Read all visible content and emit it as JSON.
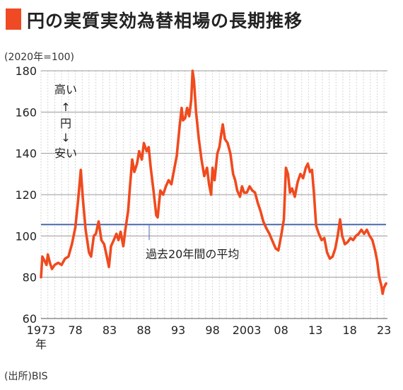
{
  "title": "円の実質実効為替相場の長期推移",
  "unit_label": "(2020年=100)",
  "source_label": "(出所)BIS",
  "colors": {
    "line": "#f04a1e",
    "avg": "#4a6aa8",
    "accent": "#ef4a23",
    "grid": "#c8c8c8"
  },
  "chart_data": {
    "type": "line",
    "title": "円の実質実効為替相場の長期推移",
    "ylim": [
      60,
      180
    ],
    "yticks": [
      60,
      80,
      100,
      120,
      140,
      160,
      180
    ],
    "xlim": [
      1973.0,
      2023.5
    ],
    "xticks": [
      {
        "x": 1973,
        "label": "1973"
      },
      {
        "x": 1978,
        "label": "78"
      },
      {
        "x": 1983,
        "label": "83"
      },
      {
        "x": 1988,
        "label": "88"
      },
      {
        "x": 1993,
        "label": "93"
      },
      {
        "x": 1998,
        "label": "98"
      },
      {
        "x": 2003,
        "label": "2003"
      },
      {
        "x": 2008,
        "label": "08"
      },
      {
        "x": 2013,
        "label": "13"
      },
      {
        "x": 2018,
        "label": "18"
      },
      {
        "x": 2023,
        "label": "23"
      }
    ],
    "year_suffix": "年",
    "annotation_axis": [
      "高い",
      "↑",
      "円",
      "↓",
      "安い"
    ],
    "average_label": "過去20年間の平均",
    "average_value": 105.5,
    "series": [
      {
        "points": [
          [
            1973.0,
            80
          ],
          [
            1973.2,
            90
          ],
          [
            1973.5,
            88
          ],
          [
            1973.8,
            86
          ],
          [
            1974.0,
            91
          ],
          [
            1974.3,
            87
          ],
          [
            1974.6,
            84
          ],
          [
            1975.0,
            86
          ],
          [
            1975.5,
            87
          ],
          [
            1976.0,
            86
          ],
          [
            1976.5,
            89
          ],
          [
            1977.0,
            90
          ],
          [
            1977.5,
            96
          ],
          [
            1978.0,
            104
          ],
          [
            1978.4,
            117
          ],
          [
            1978.8,
            132
          ],
          [
            1979.1,
            118
          ],
          [
            1979.5,
            103
          ],
          [
            1980.0,
            92
          ],
          [
            1980.3,
            90
          ],
          [
            1980.7,
            100
          ],
          [
            1981.0,
            101
          ],
          [
            1981.4,
            107
          ],
          [
            1981.8,
            98
          ],
          [
            1982.2,
            96
          ],
          [
            1982.6,
            90
          ],
          [
            1982.9,
            85
          ],
          [
            1983.2,
            95
          ],
          [
            1983.6,
            98
          ],
          [
            1984.0,
            101
          ],
          [
            1984.3,
            98
          ],
          [
            1984.6,
            102
          ],
          [
            1985.0,
            95
          ],
          [
            1985.3,
            103
          ],
          [
            1985.7,
            112
          ],
          [
            1986.0,
            125
          ],
          [
            1986.3,
            137
          ],
          [
            1986.6,
            131
          ],
          [
            1987.0,
            135
          ],
          [
            1987.3,
            141
          ],
          [
            1987.7,
            137
          ],
          [
            1988.0,
            145
          ],
          [
            1988.4,
            141
          ],
          [
            1988.7,
            143
          ],
          [
            1989.0,
            133
          ],
          [
            1989.4,
            122
          ],
          [
            1989.8,
            110
          ],
          [
            1990.0,
            109
          ],
          [
            1990.4,
            122
          ],
          [
            1990.8,
            120
          ],
          [
            1991.2,
            124
          ],
          [
            1991.6,
            127
          ],
          [
            1992.0,
            125
          ],
          [
            1992.4,
            132
          ],
          [
            1992.8,
            139
          ],
          [
            1993.2,
            153
          ],
          [
            1993.5,
            162
          ],
          [
            1993.7,
            156
          ],
          [
            1994.0,
            157
          ],
          [
            1994.3,
            162
          ],
          [
            1994.6,
            158
          ],
          [
            1994.9,
            166
          ],
          [
            1995.1,
            180
          ],
          [
            1995.3,
            175
          ],
          [
            1995.6,
            160
          ],
          [
            1996.0,
            147
          ],
          [
            1996.4,
            137
          ],
          [
            1996.8,
            129
          ],
          [
            1997.2,
            133
          ],
          [
            1997.5,
            125
          ],
          [
            1997.8,
            120
          ],
          [
            1998.0,
            133
          ],
          [
            1998.3,
            127
          ],
          [
            1998.7,
            140
          ],
          [
            1999.0,
            143
          ],
          [
            1999.3,
            150
          ],
          [
            1999.5,
            154
          ],
          [
            1999.8,
            147
          ],
          [
            2000.2,
            145
          ],
          [
            2000.6,
            140
          ],
          [
            2001.0,
            130
          ],
          [
            2001.3,
            127
          ],
          [
            2001.6,
            122
          ],
          [
            2002.0,
            119
          ],
          [
            2002.3,
            124
          ],
          [
            2002.6,
            121
          ],
          [
            2003.0,
            121
          ],
          [
            2003.4,
            124
          ],
          [
            2003.8,
            122
          ],
          [
            2004.2,
            121
          ],
          [
            2004.6,
            116
          ],
          [
            2005.0,
            112
          ],
          [
            2005.4,
            107
          ],
          [
            2005.8,
            104
          ],
          [
            2006.3,
            101
          ],
          [
            2006.8,
            97
          ],
          [
            2007.2,
            94
          ],
          [
            2007.6,
            93
          ],
          [
            2008.0,
            100
          ],
          [
            2008.4,
            108
          ],
          [
            2008.7,
            133
          ],
          [
            2009.0,
            130
          ],
          [
            2009.3,
            121
          ],
          [
            2009.6,
            123
          ],
          [
            2010.0,
            119
          ],
          [
            2010.4,
            126
          ],
          [
            2010.8,
            130
          ],
          [
            2011.2,
            128
          ],
          [
            2011.6,
            133
          ],
          [
            2011.9,
            135
          ],
          [
            2012.2,
            131
          ],
          [
            2012.5,
            132
          ],
          [
            2012.8,
            120
          ],
          [
            2013.1,
            105
          ],
          [
            2013.5,
            101
          ],
          [
            2013.9,
            98
          ],
          [
            2014.3,
            99
          ],
          [
            2014.7,
            92
          ],
          [
            2015.1,
            89
          ],
          [
            2015.5,
            90
          ],
          [
            2015.9,
            94
          ],
          [
            2016.3,
            101
          ],
          [
            2016.6,
            108
          ],
          [
            2016.9,
            100
          ],
          [
            2017.3,
            96
          ],
          [
            2017.7,
            97
          ],
          [
            2018.1,
            99
          ],
          [
            2018.5,
            98
          ],
          [
            2018.9,
            100
          ],
          [
            2019.3,
            101
          ],
          [
            2019.7,
            103
          ],
          [
            2020.1,
            101
          ],
          [
            2020.5,
            103
          ],
          [
            2020.9,
            100
          ],
          [
            2021.3,
            98
          ],
          [
            2021.7,
            93
          ],
          [
            2022.0,
            88
          ],
          [
            2022.3,
            80
          ],
          [
            2022.6,
            76
          ],
          [
            2022.8,
            72
          ],
          [
            2023.0,
            75
          ],
          [
            2023.3,
            77
          ]
        ]
      }
    ]
  }
}
